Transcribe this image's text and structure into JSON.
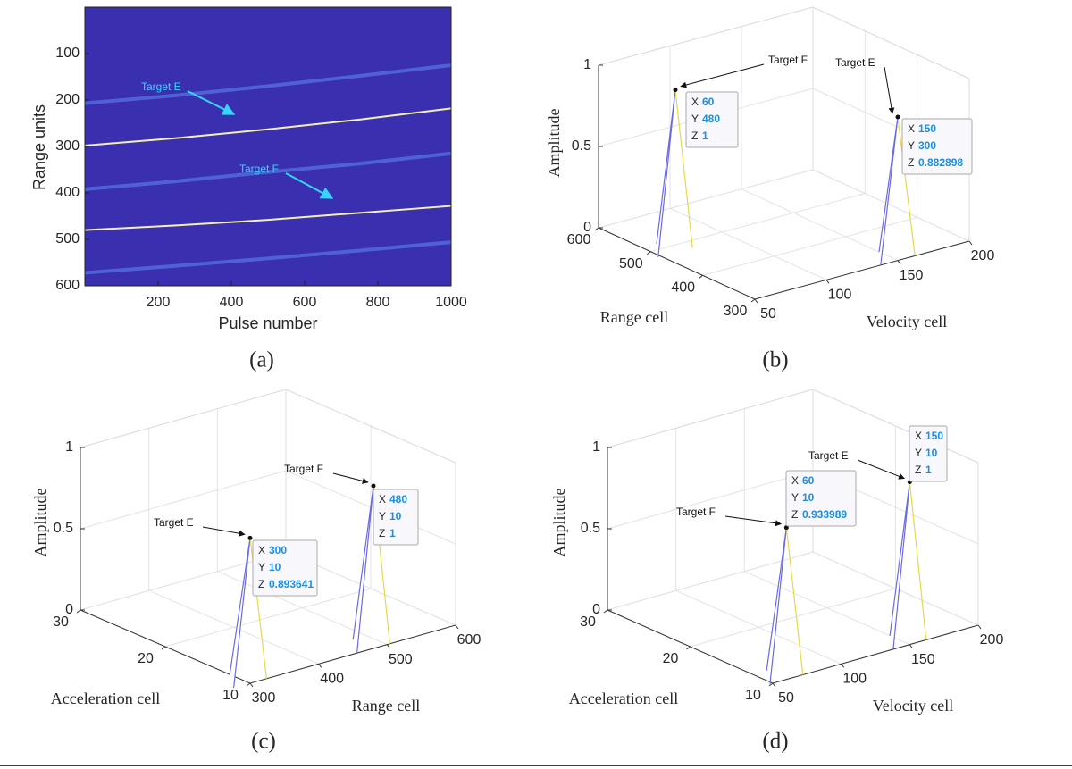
{
  "chart_data": [
    {
      "type": "heatmap",
      "caption": "(a)",
      "xlabel": "Pulse number",
      "ylabel": "Range units",
      "xlim": [
        0,
        1000
      ],
      "xticks": [
        200,
        400,
        600,
        800,
        1000
      ],
      "ylim": [
        0,
        600
      ],
      "yticks": [
        100,
        200,
        300,
        400,
        500,
        600
      ],
      "y_reversed": true,
      "background": "#3a2fae",
      "series": [
        {
          "color": "#5d86ee",
          "x": [
            0,
            250,
            500,
            750,
            1000
          ],
          "values": [
            207,
            190,
            170,
            148,
            125
          ]
        },
        {
          "color": "#f4f0b0",
          "x": [
            0,
            250,
            500,
            750,
            1000
          ],
          "values": [
            298,
            282,
            263,
            242,
            218
          ]
        },
        {
          "color": "#5d86ee",
          "x": [
            0,
            250,
            500,
            750,
            1000
          ],
          "values": [
            392,
            375,
            355,
            337,
            315
          ]
        },
        {
          "color": "#f4f0b0",
          "x": [
            0,
            250,
            500,
            750,
            1000
          ],
          "values": [
            480,
            470,
            458,
            443,
            428
          ]
        },
        {
          "color": "#5d86ee",
          "x": [
            0,
            250,
            500,
            750,
            1000
          ],
          "values": [
            572,
            557,
            541,
            524,
            506
          ]
        }
      ],
      "annotations": [
        {
          "text": "Target E",
          "color": "#33d6ff"
        },
        {
          "text": "Target F",
          "color": "#33d6ff"
        }
      ]
    },
    {
      "type": "surface3d",
      "caption": "(b)",
      "xlabel": "Velocity cell",
      "ylabel": "Range cell",
      "zlabel": "Amplitude",
      "xlim": [
        50,
        200
      ],
      "xticks": [
        50,
        100,
        150,
        200
      ],
      "ylim": [
        300,
        600
      ],
      "yticks": [
        300,
        400,
        500,
        600
      ],
      "zlim": [
        0,
        1
      ],
      "zticks": [
        0,
        0.5,
        1
      ],
      "grid": true,
      "color": "#6a6ae0",
      "datatip_fields": [
        "X",
        "Y",
        "Z"
      ],
      "points": [
        {
          "label": "Target F",
          "x": 60,
          "y": 480,
          "z": 1
        },
        {
          "label": "Target E",
          "x": 150,
          "y": 300,
          "z": 0.882898
        }
      ]
    },
    {
      "type": "surface3d",
      "caption": "(c)",
      "xlabel": "Range cell",
      "ylabel": "Acceleration cell",
      "zlabel": "Amplitude",
      "xlim": [
        300,
        600
      ],
      "xticks": [
        300,
        400,
        500,
        600
      ],
      "ylim": [
        10,
        30
      ],
      "yticks": [
        10,
        20,
        30
      ],
      "zlim": [
        0,
        1
      ],
      "zticks": [
        0,
        0.5,
        1
      ],
      "grid": true,
      "color": "#6a6ae0",
      "datatip_fields": [
        "X",
        "Y",
        "Z"
      ],
      "points": [
        {
          "label": "Target E",
          "x": 300,
          "y": 10,
          "z": 0.893641
        },
        {
          "label": "Target F",
          "x": 480,
          "y": 10,
          "z": 1
        }
      ]
    },
    {
      "type": "surface3d",
      "caption": "(d)",
      "xlabel": "Velocity cell",
      "ylabel": "Acceleration cell",
      "zlabel": "Amplitude",
      "xlim": [
        50,
        200
      ],
      "xticks": [
        50,
        100,
        150,
        200
      ],
      "ylim": [
        10,
        30
      ],
      "yticks": [
        10,
        20,
        30
      ],
      "zlim": [
        0,
        1
      ],
      "zticks": [
        0,
        0.5,
        1
      ],
      "grid": true,
      "color": "#6a6ae0",
      "datatip_fields": [
        "X",
        "Y",
        "Z"
      ],
      "points": [
        {
          "label": "Target F",
          "x": 60,
          "y": 10,
          "z": 0.933989
        },
        {
          "label": "Target E",
          "x": 150,
          "y": 10,
          "z": 1
        }
      ]
    }
  ]
}
